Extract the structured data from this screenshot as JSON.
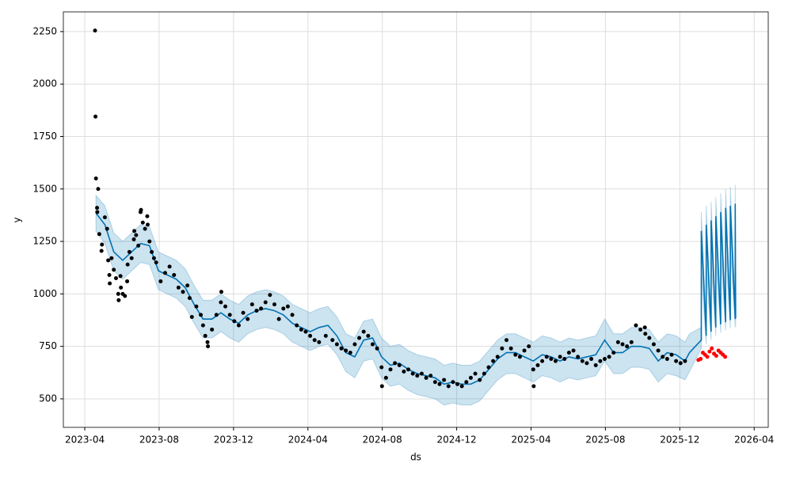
{
  "chart_data": {
    "type": "line",
    "xlabel": "ds",
    "ylabel": "y",
    "xlim": [
      2023.154,
      2026.313
    ],
    "ylim": [
      364,
      2344
    ],
    "xticks": [
      {
        "value": 2023.25,
        "label": "2023-04"
      },
      {
        "value": 2023.5833,
        "label": "2023-08"
      },
      {
        "value": 2023.9167,
        "label": "2023-12"
      },
      {
        "value": 2024.25,
        "label": "2024-04"
      },
      {
        "value": 2024.5833,
        "label": "2024-08"
      },
      {
        "value": 2024.9167,
        "label": "2024-12"
      },
      {
        "value": 2025.25,
        "label": "2025-04"
      },
      {
        "value": 2025.5833,
        "label": "2025-08"
      },
      {
        "value": 2025.9167,
        "label": "2025-12"
      },
      {
        "value": 2026.25,
        "label": "2026-04"
      }
    ],
    "yticks": [
      500,
      750,
      1000,
      1250,
      1500,
      1750,
      2000,
      2250
    ],
    "grid": true,
    "observed": {
      "color": "#000000",
      "x": [
        2023.296,
        2023.298,
        2023.3,
        2023.305,
        2023.306,
        2023.31,
        2023.315,
        2023.325,
        2023.327,
        2023.34,
        2023.35,
        2023.355,
        2023.36,
        2023.362,
        2023.37,
        2023.38,
        2023.39,
        2023.4,
        2023.402,
        2023.41,
        2023.412,
        2023.42,
        2023.43,
        2023.44,
        2023.442,
        2023.45,
        2023.46,
        2023.47,
        2023.472,
        2023.48,
        2023.49,
        2023.5,
        2023.502,
        2023.51,
        2023.52,
        2023.53,
        2023.532,
        2023.54,
        2023.55,
        2023.56,
        2023.57,
        2023.59,
        2023.61,
        2023.63,
        2023.65,
        2023.67,
        2023.69,
        2023.71,
        2023.72,
        2023.73,
        2023.75,
        2023.77,
        2023.78,
        2023.79,
        2023.8,
        2023.802,
        2023.82,
        2023.84,
        2023.86,
        2023.862,
        2023.88,
        2023.9,
        2023.92,
        2023.94,
        2023.96,
        2023.98,
        2024.0,
        2024.02,
        2024.04,
        2024.06,
        2024.08,
        2024.1,
        2024.12,
        2024.14,
        2024.16,
        2024.18,
        2024.2,
        2024.22,
        2024.24,
        2024.26,
        2024.28,
        2024.3,
        2024.33,
        2024.36,
        2024.38,
        2024.4,
        2024.42,
        2024.44,
        2024.46,
        2024.48,
        2024.5,
        2024.52,
        2024.54,
        2024.56,
        2024.58,
        2024.582,
        2024.6,
        2024.62,
        2024.64,
        2024.66,
        2024.68,
        2024.7,
        2024.72,
        2024.74,
        2024.76,
        2024.78,
        2024.8,
        2024.82,
        2024.84,
        2024.86,
        2024.88,
        2024.9,
        2024.92,
        2024.94,
        2024.96,
        2024.98,
        2025.0,
        2025.02,
        2025.04,
        2025.06,
        2025.08,
        2025.1,
        2025.12,
        2025.14,
        2025.16,
        2025.18,
        2025.2,
        2025.22,
        2025.24,
        2025.26,
        2025.262,
        2025.28,
        2025.3,
        2025.32,
        2025.34,
        2025.36,
        2025.38,
        2025.4,
        2025.42,
        2025.44,
        2025.46,
        2025.48,
        2025.5,
        2025.52,
        2025.54,
        2025.56,
        2025.58,
        2025.6,
        2025.62,
        2025.64,
        2025.66,
        2025.68,
        2025.7,
        2025.72,
        2025.74,
        2025.76,
        2025.762,
        2025.78,
        2025.8,
        2025.82,
        2025.84,
        2025.86,
        2025.88,
        2025.9,
        2025.92,
        2025.94
      ],
      "values": [
        2255,
        1845,
        1550,
        1410,
        1390,
        1500,
        1285,
        1205,
        1235,
        1365,
        1310,
        1160,
        1090,
        1050,
        1170,
        1115,
        1075,
        1000,
        970,
        1085,
        1030,
        1000,
        990,
        1060,
        1140,
        1200,
        1170,
        1260,
        1300,
        1280,
        1230,
        1390,
        1400,
        1340,
        1310,
        1370,
        1330,
        1250,
        1200,
        1170,
        1150,
        1060,
        1100,
        1130,
        1090,
        1030,
        1010,
        1040,
        980,
        890,
        940,
        900,
        850,
        800,
        770,
        750,
        830,
        900,
        960,
        1010,
        940,
        900,
        870,
        850,
        910,
        880,
        950,
        920,
        930,
        960,
        995,
        950,
        880,
        930,
        940,
        900,
        850,
        830,
        820,
        800,
        780,
        770,
        800,
        780,
        760,
        740,
        730,
        720,
        760,
        790,
        820,
        800,
        760,
        740,
        650,
        560,
        600,
        640,
        670,
        660,
        630,
        640,
        620,
        610,
        620,
        600,
        610,
        580,
        570,
        590,
        560,
        580,
        570,
        560,
        580,
        600,
        620,
        590,
        620,
        650,
        680,
        700,
        740,
        780,
        740,
        710,
        700,
        730,
        750,
        640,
        560,
        660,
        680,
        700,
        690,
        680,
        700,
        690,
        720,
        730,
        700,
        680,
        670,
        690,
        660,
        680,
        690,
        700,
        720,
        770,
        760,
        750,
        770,
        850,
        830,
        840,
        810,
        790,
        760,
        730,
        700,
        690,
        710,
        680,
        670,
        680
      ]
    },
    "forecast": {
      "color": "#0072B2",
      "x": [
        2023.3,
        2023.34,
        2023.38,
        2023.42,
        2023.46,
        2023.5,
        2023.54,
        2023.58,
        2023.62,
        2023.66,
        2023.7,
        2023.74,
        2023.78,
        2023.82,
        2023.86,
        2023.9,
        2023.94,
        2023.98,
        2024.02,
        2024.06,
        2024.1,
        2024.14,
        2024.18,
        2024.22,
        2024.26,
        2024.3,
        2024.34,
        2024.38,
        2024.42,
        2024.46,
        2024.5,
        2024.54,
        2024.58,
        2024.62,
        2024.66,
        2024.7,
        2024.74,
        2024.78,
        2024.82,
        2024.86,
        2024.9,
        2024.94,
        2024.98,
        2025.02,
        2025.06,
        2025.1,
        2025.14,
        2025.18,
        2025.22,
        2025.26,
        2025.3,
        2025.34,
        2025.38,
        2025.42,
        2025.46,
        2025.5,
        2025.54,
        2025.58,
        2025.62,
        2025.66,
        2025.7,
        2025.74,
        2025.78,
        2025.82,
        2025.86,
        2025.9,
        2025.94,
        2025.96,
        2026.013,
        2026.013,
        2026.035,
        2026.035,
        2026.057,
        2026.057,
        2026.078,
        2026.078,
        2026.1,
        2026.1,
        2026.122,
        2026.122,
        2026.143,
        2026.143,
        2026.165,
        2026.165,
        2026.167
      ],
      "values": [
        1385,
        1330,
        1200,
        1160,
        1200,
        1240,
        1230,
        1110,
        1090,
        1070,
        1030,
        950,
        880,
        880,
        910,
        880,
        860,
        900,
        920,
        930,
        920,
        900,
        860,
        840,
        820,
        840,
        850,
        800,
        720,
        700,
        780,
        790,
        700,
        660,
        670,
        640,
        620,
        610,
        600,
        570,
        580,
        570,
        570,
        590,
        640,
        690,
        720,
        720,
        700,
        680,
        710,
        700,
        680,
        700,
        690,
        700,
        710,
        780,
        720,
        720,
        750,
        750,
        740,
        680,
        720,
        710,
        680,
        720,
        780,
        1300,
        800,
        1330,
        820,
        1350,
        840,
        1370,
        855,
        1390,
        865,
        1410,
        875,
        1420,
        880,
        1430,
        885
      ],
      "upper": [
        1470,
        1420,
        1290,
        1250,
        1290,
        1330,
        1320,
        1200,
        1180,
        1160,
        1120,
        1040,
        970,
        970,
        1000,
        970,
        950,
        990,
        1010,
        1020,
        1010,
        990,
        950,
        930,
        910,
        930,
        940,
        890,
        810,
        790,
        870,
        880,
        790,
        750,
        760,
        730,
        710,
        700,
        690,
        660,
        670,
        660,
        660,
        680,
        730,
        780,
        810,
        810,
        790,
        770,
        800,
        790,
        770,
        790,
        780,
        790,
        800,
        880,
        810,
        810,
        840,
        840,
        830,
        770,
        810,
        800,
        770,
        810,
        840,
        1390,
        860,
        1420,
        880,
        1440,
        900,
        1460,
        915,
        1480,
        925,
        1500,
        935,
        1510,
        940,
        1520,
        945
      ],
      "lower": [
        1300,
        1240,
        1110,
        1070,
        1110,
        1150,
        1140,
        1020,
        1000,
        980,
        940,
        860,
        790,
        790,
        820,
        790,
        770,
        810,
        830,
        840,
        830,
        810,
        770,
        750,
        730,
        750,
        760,
        710,
        630,
        600,
        680,
        690,
        600,
        560,
        570,
        540,
        520,
        510,
        500,
        470,
        480,
        470,
        470,
        490,
        540,
        590,
        620,
        620,
        600,
        580,
        610,
        600,
        580,
        600,
        590,
        600,
        610,
        680,
        620,
        620,
        650,
        650,
        640,
        580,
        620,
        610,
        590,
        630,
        740,
        1100,
        760,
        1130,
        780,
        1150,
        800,
        1170,
        815,
        1190,
        825,
        1210,
        835,
        1220,
        840,
        1230,
        845
      ]
    },
    "future": {
      "color": "#ff0000",
      "x": [
        2026.0,
        2026.01,
        2026.02,
        2026.03,
        2026.04,
        2026.05,
        2026.06,
        2026.07,
        2026.08,
        2026.09,
        2026.1,
        2026.11,
        2026.12
      ],
      "values": [
        685,
        690,
        720,
        710,
        700,
        725,
        740,
        715,
        705,
        730,
        720,
        710,
        700
      ]
    }
  }
}
